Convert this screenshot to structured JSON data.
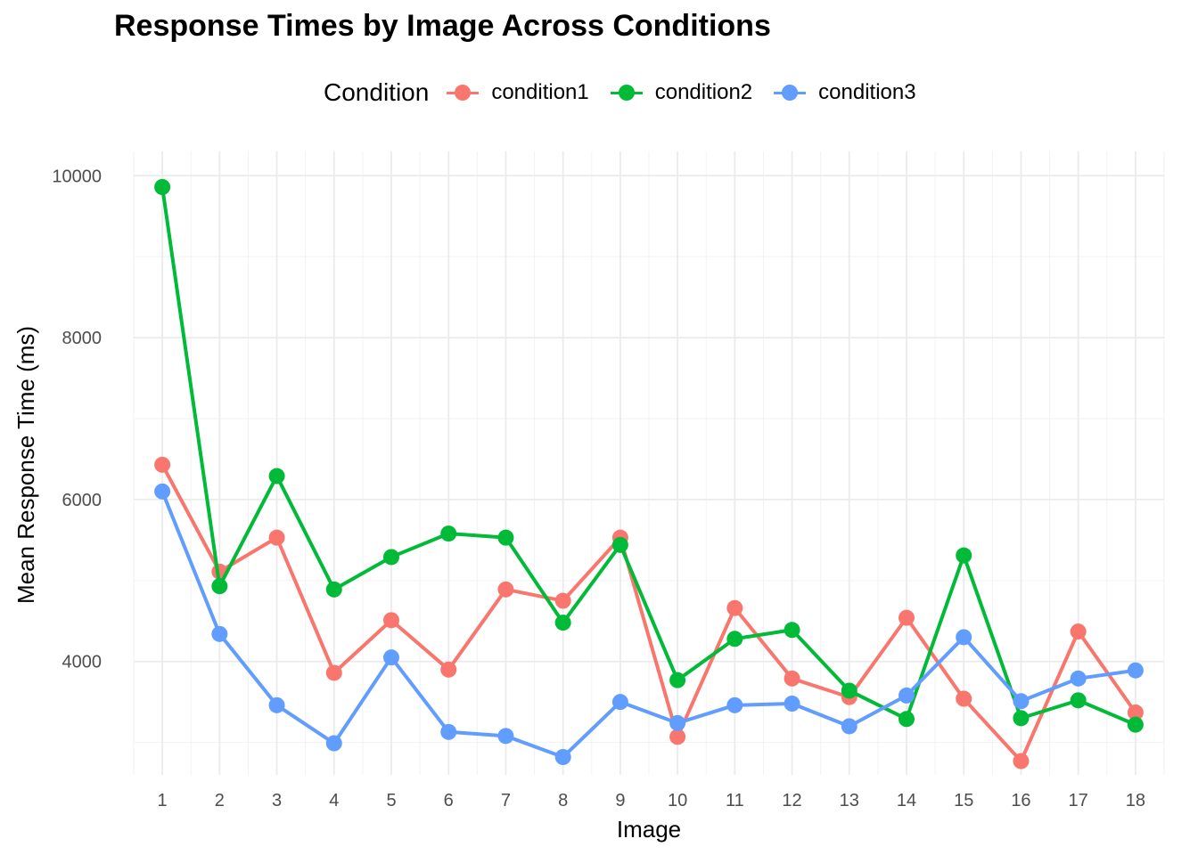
{
  "chart_data": {
    "type": "line",
    "title": "Response Times by Image Across Conditions",
    "xlabel": "Image",
    "ylabel": "Mean Response Time (ms)",
    "legend_title": "Condition",
    "legend_position": "top",
    "grid": true,
    "x": [
      1,
      2,
      3,
      4,
      5,
      6,
      7,
      8,
      9,
      10,
      11,
      12,
      13,
      14,
      15,
      16,
      17,
      18
    ],
    "x_tick_labels": [
      "1",
      "2",
      "3",
      "4",
      "5",
      "6",
      "7",
      "8",
      "9",
      "10",
      "11",
      "12",
      "13",
      "14",
      "15",
      "16",
      "17",
      "18"
    ],
    "xlim": [
      0.5,
      18.5
    ],
    "y_ticks": [
      4000,
      6000,
      8000,
      10000
    ],
    "y_tick_labels": [
      "4000",
      "6000",
      "8000",
      "10000"
    ],
    "ylim": [
      2600,
      10300
    ],
    "series": [
      {
        "name": "condition1",
        "color": "#F8766D",
        "values": [
          6430,
          5110,
          5530,
          3860,
          4510,
          3900,
          4890,
          4750,
          5530,
          3070,
          4660,
          3790,
          3560,
          4540,
          3540,
          2770,
          4370,
          3370
        ]
      },
      {
        "name": "condition2",
        "color": "#00BA38",
        "values": [
          9860,
          4930,
          6290,
          4890,
          5290,
          5580,
          5530,
          4480,
          5440,
          3770,
          4280,
          4390,
          3640,
          3290,
          5310,
          3300,
          3520,
          3220
        ]
      },
      {
        "name": "condition3",
        "color": "#619CFF",
        "values": [
          6100,
          4340,
          3460,
          2990,
          4050,
          3130,
          3080,
          2820,
          3500,
          3240,
          3460,
          3480,
          3200,
          3580,
          4300,
          3510,
          3790,
          3890
        ]
      }
    ]
  }
}
